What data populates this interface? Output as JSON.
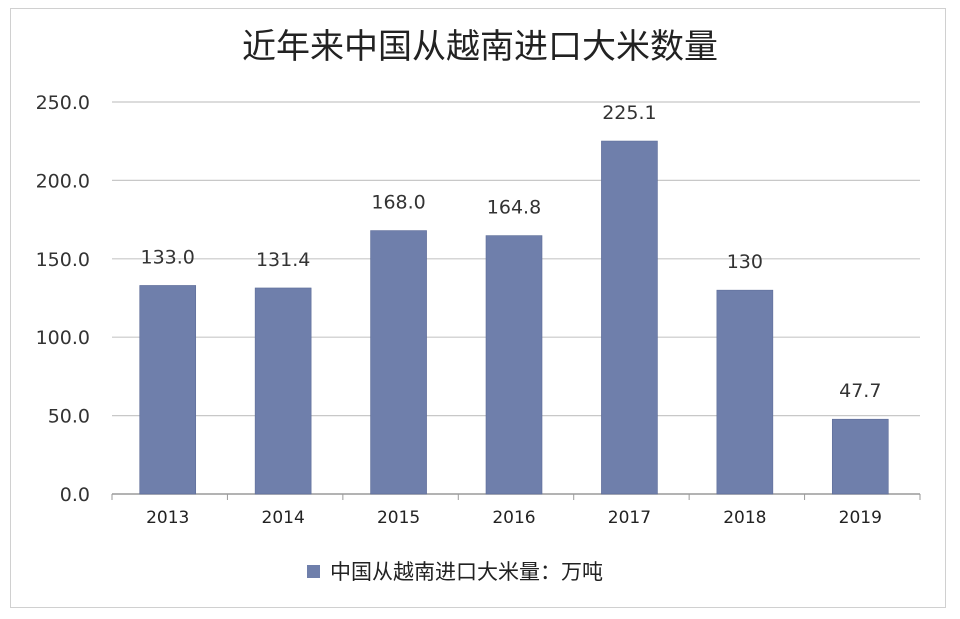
{
  "chart_data": {
    "type": "bar",
    "title": "近年来中国从越南进口大米数量",
    "categories": [
      "2013",
      "2014",
      "2015",
      "2016",
      "2017",
      "2018",
      "2019"
    ],
    "series": [
      {
        "name": "中国从越南进口大米量：万吨",
        "values": [
          133.0,
          131.4,
          168.0,
          164.8,
          225.1,
          130,
          47.7
        ],
        "labels": [
          "133.0",
          "131.4",
          "168.0",
          "164.8",
          "225.1",
          "130",
          "47.7"
        ]
      }
    ],
    "ylim": [
      0,
      250
    ],
    "yticks": [
      "0.0",
      "50.0",
      "100.0",
      "150.0",
      "200.0",
      "250.0"
    ],
    "grid": true,
    "legend_position": "bottom",
    "colors": {
      "bar": "#6f7fab",
      "grid": "#c8c8c8",
      "axis": "#9a9a9a"
    }
  }
}
